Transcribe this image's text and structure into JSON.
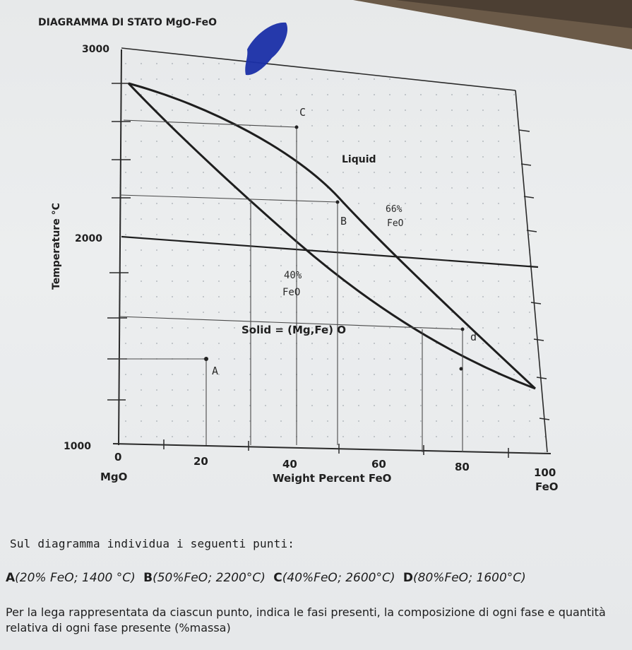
{
  "diagram": {
    "title": "DIAGRAMMA DI STATO MgO-FeO",
    "y_axis_label": "Temperature °C",
    "y_ticks": [
      "3000",
      "2000",
      "1000"
    ],
    "x_ticks": [
      "0",
      "20",
      "40",
      "60",
      "80",
      "100"
    ],
    "x_left_label": "MgO",
    "x_right_label": "FeO",
    "x_axis_label": "Weight Percent FeO",
    "region_liquid": "Liquid",
    "region_solid": "Solid = (Mg,Fe) O",
    "annotation_66": "66%",
    "annotation_66_sub": "FeO",
    "annotation_40": "40%",
    "annotation_40_sub": "FeO",
    "point_a": "A",
    "point_b": "B",
    "point_c": "C",
    "point_d": "d",
    "colors": {
      "ink": "#1e1e1e",
      "marker": "#1a2fa8",
      "grid_dot": "#9aa0a6"
    }
  },
  "questions": {
    "intro": "Sul diagramma individua i seguenti punti:",
    "points": [
      {
        "label": "A",
        "value": "(20% FeO; 1400 °C)"
      },
      {
        "label": "B",
        "value": "(50%FeO; 2200°C)"
      },
      {
        "label": "C",
        "value": "(40%FeO; 2600°C)"
      },
      {
        "label": "D",
        "value": "(80%FeO; 1600°C)"
      }
    ],
    "task": "Per la lega rappresentata da ciascun punto, indica le fasi presenti, la composizione di ogni fase e quantità relativa di ogni fase presente (%massa)"
  }
}
